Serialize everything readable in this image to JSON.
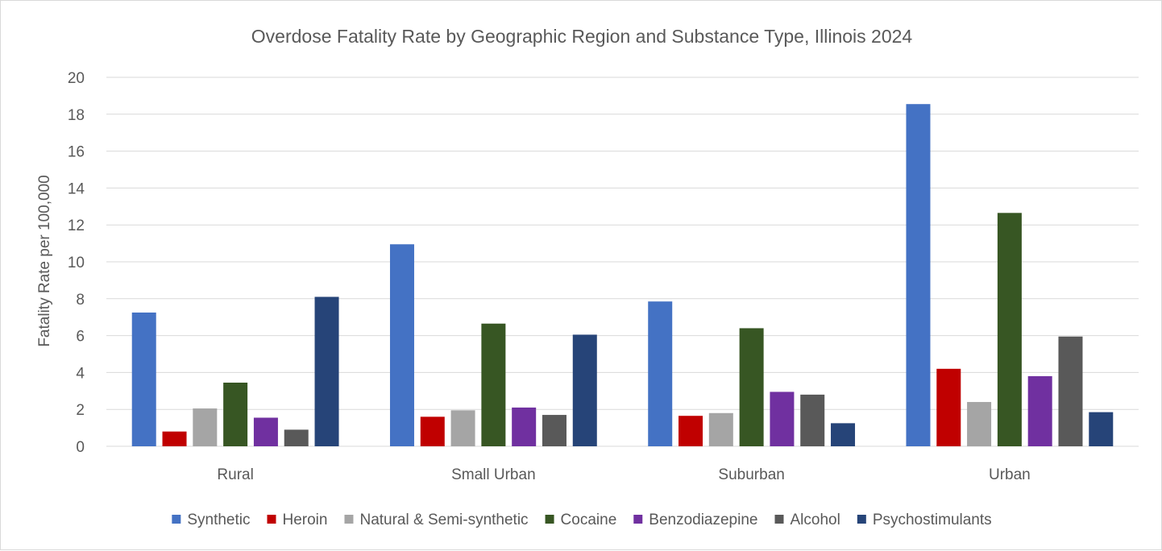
{
  "chart_data": {
    "type": "bar",
    "title": "Overdose Fatality Rate by Geographic Region and Substance Type, Illinois 2024",
    "xlabel": "",
    "ylabel": "Fatality Rate per 100,000",
    "ylim": [
      0,
      20
    ],
    "yticks": [
      0,
      2,
      4,
      6,
      8,
      10,
      12,
      14,
      16,
      18,
      20
    ],
    "grid": true,
    "legend_position": "bottom",
    "categories": [
      "Rural",
      "Small Urban",
      "Suburban",
      "Urban"
    ],
    "series": [
      {
        "name": "Synthetic",
        "color": "#4472C4",
        "values": [
          7.25,
          10.95,
          7.85,
          18.55
        ]
      },
      {
        "name": "Heroin",
        "color": "#C00000",
        "values": [
          0.8,
          1.6,
          1.65,
          4.2
        ]
      },
      {
        "name": "Natural & Semi-synthetic",
        "color": "#A5A5A5",
        "values": [
          2.05,
          1.95,
          1.8,
          2.4
        ]
      },
      {
        "name": "Cocaine",
        "color": "#375623",
        "values": [
          3.45,
          6.65,
          6.4,
          12.65
        ]
      },
      {
        "name": "Benzodiazepine",
        "color": "#7030A0",
        "values": [
          1.55,
          2.1,
          2.95,
          3.8
        ]
      },
      {
        "name": "Alcohol",
        "color": "#595959",
        "values": [
          0.9,
          1.7,
          2.8,
          5.95
        ]
      },
      {
        "name": "Psychostimulants",
        "color": "#264478",
        "values": [
          8.1,
          6.05,
          1.25,
          1.85
        ]
      }
    ]
  }
}
